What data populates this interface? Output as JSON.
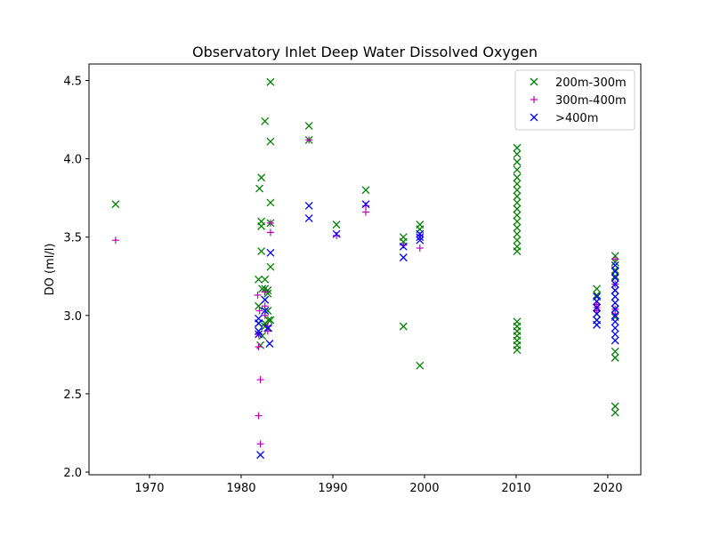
{
  "chart_data": {
    "type": "scatter",
    "title": "Observatory Inlet Deep Water Dissolved Oxygen",
    "xlabel": "",
    "ylabel": "DO (ml/l)",
    "xlim": [
      1963.4,
      2023.6
    ],
    "ylim": [
      1.983,
      4.605
    ],
    "x_ticks": [
      1970,
      1980,
      1990,
      2000,
      2010,
      2020
    ],
    "y_ticks": [
      2.0,
      2.5,
      3.0,
      3.5,
      4.0,
      4.5
    ],
    "y_tick_labels": [
      "2.0",
      "2.5",
      "3.0",
      "3.5",
      "4.0",
      "4.5"
    ],
    "grid": false,
    "legend_position": "top-right",
    "series": [
      {
        "name": "200m-300m",
        "marker": "x",
        "color": "#008000",
        "points": [
          [
            1966.3,
            3.71
          ],
          [
            1981.9,
            3.23
          ],
          [
            1981.9,
            3.06
          ],
          [
            1981.9,
            2.95
          ],
          [
            1981.9,
            2.9
          ],
          [
            1982.0,
            3.81
          ],
          [
            1982.1,
            2.81
          ],
          [
            1982.2,
            3.88
          ],
          [
            1982.2,
            3.6
          ],
          [
            1982.2,
            3.57
          ],
          [
            1982.2,
            3.41
          ],
          [
            1982.3,
            3.17
          ],
          [
            1982.3,
            2.87
          ],
          [
            1982.6,
            4.24
          ],
          [
            1982.6,
            3.23
          ],
          [
            1982.6,
            3.17
          ],
          [
            1982.6,
            3.1
          ],
          [
            1982.6,
            2.95
          ],
          [
            1982.6,
            2.93
          ],
          [
            1982.9,
            3.16
          ],
          [
            1982.9,
            3.14
          ],
          [
            1982.9,
            3.03
          ],
          [
            1983.0,
            2.97
          ],
          [
            1983.0,
            2.92
          ],
          [
            1983.2,
            4.49
          ],
          [
            1983.2,
            4.11
          ],
          [
            1983.2,
            3.72
          ],
          [
            1983.2,
            3.59
          ],
          [
            1983.2,
            3.31
          ],
          [
            1983.2,
            2.97
          ],
          [
            1987.4,
            4.21
          ],
          [
            1987.4,
            4.12
          ],
          [
            1990.4,
            3.58
          ],
          [
            1993.6,
            3.8
          ],
          [
            1997.7,
            3.5
          ],
          [
            1997.7,
            3.47
          ],
          [
            1997.7,
            2.93
          ],
          [
            1999.5,
            3.58
          ],
          [
            1999.5,
            3.55
          ],
          [
            1999.5,
            2.68
          ],
          [
            2010.1,
            4.07
          ],
          [
            2010.1,
            4.03
          ],
          [
            2010.1,
            3.98
          ],
          [
            2010.1,
            3.93
          ],
          [
            2010.1,
            3.88
          ],
          [
            2010.1,
            3.84
          ],
          [
            2010.1,
            3.8
          ],
          [
            2010.1,
            3.76
          ],
          [
            2010.1,
            3.72
          ],
          [
            2010.1,
            3.68
          ],
          [
            2010.1,
            3.64
          ],
          [
            2010.1,
            3.6
          ],
          [
            2010.1,
            3.56
          ],
          [
            2010.1,
            3.52
          ],
          [
            2010.1,
            3.48
          ],
          [
            2010.1,
            3.44
          ],
          [
            2010.1,
            3.41
          ],
          [
            2010.1,
            2.96
          ],
          [
            2010.1,
            2.93
          ],
          [
            2010.1,
            2.9
          ],
          [
            2010.1,
            2.87
          ],
          [
            2010.1,
            2.84
          ],
          [
            2010.1,
            2.81
          ],
          [
            2010.1,
            2.78
          ],
          [
            2018.8,
            3.17
          ],
          [
            2018.8,
            3.13
          ],
          [
            2018.8,
            3.09
          ],
          [
            2018.8,
            3.05
          ],
          [
            2018.8,
            3.01
          ],
          [
            2018.8,
            2.97
          ],
          [
            2020.8,
            3.38
          ],
          [
            2020.8,
            3.34
          ],
          [
            2020.8,
            3.29
          ],
          [
            2020.8,
            3.25
          ],
          [
            2020.8,
            3.2
          ],
          [
            2020.8,
            3.16
          ],
          [
            2020.8,
            3.12
          ],
          [
            2020.8,
            3.08
          ],
          [
            2020.8,
            3.04
          ],
          [
            2020.8,
            2.99
          ],
          [
            2020.8,
            2.77
          ],
          [
            2020.8,
            2.73
          ],
          [
            2020.8,
            2.42
          ],
          [
            2020.8,
            2.38
          ]
        ]
      },
      {
        "name": "300m-400m",
        "marker": "+",
        "color": "#bf00bf",
        "points": [
          [
            1966.3,
            3.48
          ],
          [
            1981.8,
            3.13
          ],
          [
            1981.9,
            2.88
          ],
          [
            1981.9,
            2.8
          ],
          [
            1981.9,
            2.36
          ],
          [
            1982.0,
            3.03
          ],
          [
            1982.1,
            2.59
          ],
          [
            1982.1,
            2.18
          ],
          [
            1982.6,
            3.15
          ],
          [
            1982.6,
            3.06
          ],
          [
            1982.6,
            3.0
          ],
          [
            1982.9,
            2.93
          ],
          [
            1982.9,
            2.9
          ],
          [
            1983.2,
            3.59
          ],
          [
            1983.2,
            3.53
          ],
          [
            1987.4,
            4.12
          ],
          [
            1990.4,
            3.51
          ],
          [
            1993.6,
            3.7
          ],
          [
            1993.6,
            3.66
          ],
          [
            1997.7,
            3.45
          ],
          [
            1999.5,
            3.51
          ],
          [
            1999.5,
            3.43
          ],
          [
            2018.8,
            3.07
          ],
          [
            2018.8,
            3.05
          ],
          [
            2018.8,
            3.03
          ],
          [
            2020.8,
            3.36
          ],
          [
            2020.8,
            3.2
          ],
          [
            2020.8,
            3.04
          ],
          [
            2020.8,
            3.01
          ]
        ]
      },
      {
        "name": ">400m",
        "marker": "x",
        "color": "#0000ff",
        "points": [
          [
            1981.9,
            2.9
          ],
          [
            1981.9,
            2.98
          ],
          [
            1981.9,
            2.95
          ],
          [
            1981.9,
            2.88
          ],
          [
            1982.1,
            2.11
          ],
          [
            1982.6,
            3.1
          ],
          [
            1982.6,
            3.03
          ],
          [
            1982.9,
            2.92
          ],
          [
            1983.1,
            2.82
          ],
          [
            1983.2,
            3.4
          ],
          [
            1987.4,
            3.7
          ],
          [
            1987.4,
            3.62
          ],
          [
            1990.4,
            3.52
          ],
          [
            1993.6,
            3.71
          ],
          [
            1997.7,
            3.44
          ],
          [
            1997.7,
            3.37
          ],
          [
            1999.5,
            3.52
          ],
          [
            1999.5,
            3.5
          ],
          [
            1999.5,
            3.48
          ],
          [
            2018.8,
            3.12
          ],
          [
            2018.8,
            3.09
          ],
          [
            2018.8,
            3.05
          ],
          [
            2018.8,
            3.01
          ],
          [
            2018.8,
            2.97
          ],
          [
            2018.8,
            2.94
          ],
          [
            2020.8,
            3.32
          ],
          [
            2020.8,
            3.28
          ],
          [
            2020.8,
            3.24
          ],
          [
            2020.8,
            3.2
          ],
          [
            2020.8,
            3.16
          ],
          [
            2020.8,
            3.12
          ],
          [
            2020.8,
            3.08
          ],
          [
            2020.8,
            3.04
          ],
          [
            2020.8,
            3.0
          ],
          [
            2020.8,
            2.96
          ],
          [
            2020.8,
            2.92
          ],
          [
            2020.8,
            2.88
          ],
          [
            2020.8,
            2.84
          ]
        ]
      }
    ]
  }
}
